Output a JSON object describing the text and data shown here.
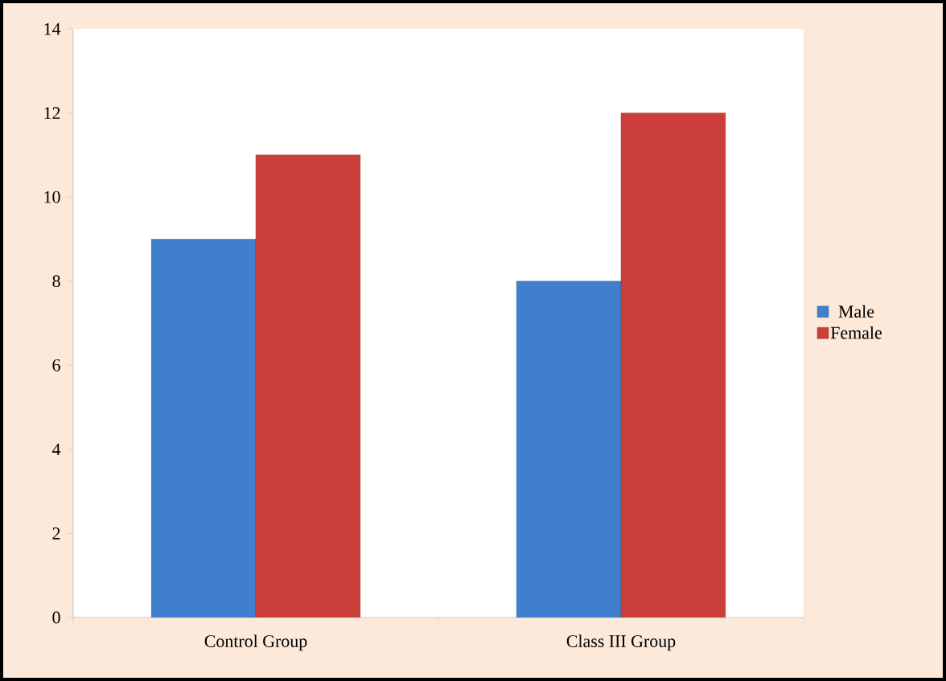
{
  "chart_data": {
    "type": "bar",
    "categories": [
      "Control Group",
      "Class III Group"
    ],
    "series": [
      {
        "name": "Male",
        "color": "#3f7fcc",
        "values": [
          9,
          8
        ]
      },
      {
        "name": "Female",
        "color": "#cc3e3a",
        "values": [
          11,
          12
        ]
      }
    ],
    "ylim": [
      0,
      14
    ],
    "yticks": [
      0,
      2,
      4,
      6,
      8,
      10,
      12,
      14
    ],
    "grid": false,
    "legend": "right"
  }
}
